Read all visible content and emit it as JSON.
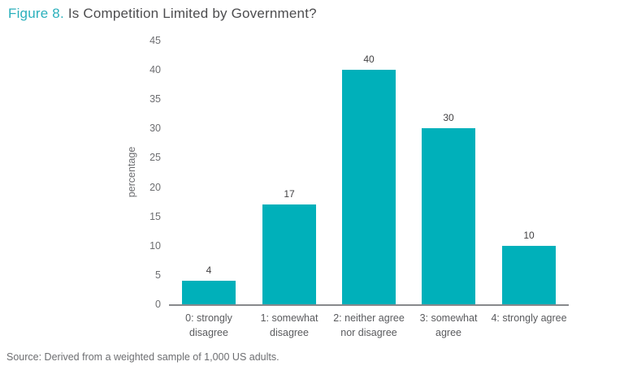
{
  "figure": {
    "title_prefix": "Figure 8.",
    "title_rest": " Is Competition Limited by Government?",
    "source": "Source: Derived from a weighted sample of 1,000 US adults."
  },
  "colors": {
    "bar": "#00b0ba",
    "title_accent": "#2bb0bc",
    "title_text": "#4d4d4f",
    "tick_text": "#6d6e71",
    "value_text": "#414042",
    "axis_line": "#87898c"
  },
  "chart_data": {
    "type": "bar",
    "title": "Is Competition Limited by Government?",
    "categories": [
      "0: strongly disagree",
      "1: somewhat disagree",
      "2: neither agree nor disagree",
      "3: somewhat agree",
      "4: strongly agree"
    ],
    "category_label_lines": [
      [
        "0: strongly",
        "disagree"
      ],
      [
        "1: somewhat",
        "disagree"
      ],
      [
        "2: neither agree",
        "nor disagree"
      ],
      [
        "3: somewhat",
        "agree"
      ],
      [
        "4: strongly agree"
      ]
    ],
    "values": [
      4,
      17,
      40,
      30,
      10
    ],
    "xlabel": "",
    "ylabel": "percentage",
    "ylim": [
      0,
      45
    ],
    "ytick_step": 5,
    "yticks": [
      0,
      5,
      10,
      15,
      20,
      25,
      30,
      35,
      40,
      45
    ],
    "grid": false,
    "legend": false,
    "value_labels": true
  }
}
